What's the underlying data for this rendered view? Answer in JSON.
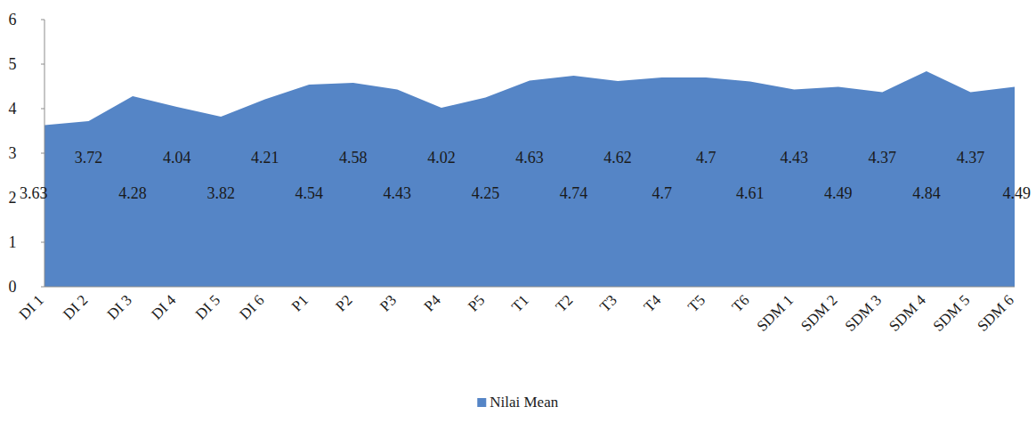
{
  "chart_data": {
    "type": "area",
    "categories": [
      "DI 1",
      "DI 2",
      "DI 3",
      "DI 4",
      "DI 5",
      "DI 6",
      "P1",
      "P2",
      "P3",
      "P4",
      "P5",
      "T1",
      "T2",
      "T3",
      "T4",
      "T5",
      "T6",
      "SDM 1",
      "SDM 2",
      "SDM 3",
      "SDM 4",
      "SDM 5",
      "SDM 6"
    ],
    "series": [
      {
        "name": "Nilai Mean",
        "color": "#5585c6",
        "values": [
          3.63,
          3.72,
          4.28,
          4.04,
          3.82,
          4.21,
          4.54,
          4.58,
          4.43,
          4.02,
          4.25,
          4.63,
          4.74,
          4.62,
          4.7,
          4.7,
          4.61,
          4.43,
          4.49,
          4.37,
          4.84,
          4.37,
          4.49
        ]
      }
    ],
    "ylim": [
      0,
      6
    ],
    "yticks": [
      0,
      1,
      2,
      3,
      4,
      5,
      6
    ],
    "grid": false,
    "legend": "bottom",
    "data_labels": true
  }
}
